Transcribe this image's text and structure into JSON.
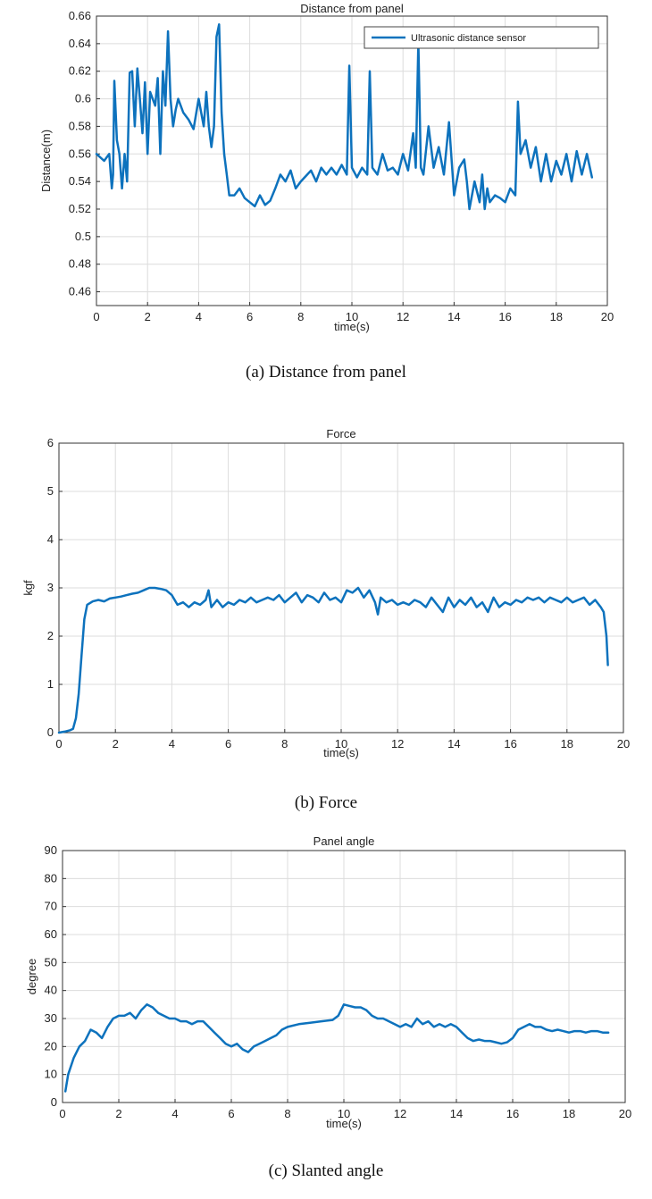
{
  "chart_data": [
    {
      "type": "line",
      "title": "Distance from panel",
      "xlabel": "time(s)",
      "ylabel": "Distance(m)",
      "xlim": [
        0,
        20
      ],
      "ylim": [
        0.45,
        0.66
      ],
      "xticks": [
        0,
        2,
        4,
        6,
        8,
        10,
        12,
        14,
        16,
        18,
        20
      ],
      "yticks": [
        0.46,
        0.48,
        0.5,
        0.52,
        0.54,
        0.56,
        0.58,
        0.6,
        0.62,
        0.64,
        0.66
      ],
      "grid": true,
      "legend": "top-right",
      "color": "#0d72bd",
      "series": [
        {
          "name": "Ultrasonic distance sensor",
          "x": [
            0,
            0.3,
            0.5,
            0.6,
            0.65,
            0.7,
            0.8,
            0.9,
            1.0,
            1.1,
            1.2,
            1.3,
            1.4,
            1.5,
            1.6,
            1.7,
            1.8,
            1.9,
            2.0,
            2.1,
            2.2,
            2.3,
            2.4,
            2.5,
            2.6,
            2.7,
            2.8,
            2.9,
            3.0,
            3.1,
            3.2,
            3.4,
            3.6,
            3.8,
            4.0,
            4.2,
            4.3,
            4.4,
            4.5,
            4.6,
            4.7,
            4.8,
            4.9,
            5.0,
            5.1,
            5.2,
            5.4,
            5.6,
            5.8,
            6.0,
            6.2,
            6.4,
            6.6,
            6.8,
            7.0,
            7.2,
            7.4,
            7.6,
            7.8,
            8.0,
            8.2,
            8.4,
            8.6,
            8.8,
            9.0,
            9.2,
            9.4,
            9.6,
            9.8,
            9.9,
            10.0,
            10.2,
            10.4,
            10.6,
            10.7,
            10.8,
            11.0,
            11.2,
            11.4,
            11.6,
            11.8,
            12.0,
            12.2,
            12.4,
            12.5,
            12.6,
            12.7,
            12.8,
            13.0,
            13.2,
            13.4,
            13.6,
            13.8,
            14.0,
            14.2,
            14.4,
            14.5,
            14.6,
            14.8,
            15.0,
            15.1,
            15.2,
            15.3,
            15.4,
            15.6,
            15.8,
            16.0,
            16.2,
            16.4,
            16.5,
            16.6,
            16.8,
            17.0,
            17.2,
            17.4,
            17.6,
            17.8,
            18.0,
            18.2,
            18.4,
            18.6,
            18.8,
            19.0,
            19.2,
            19.4
          ],
          "y": [
            0.56,
            0.555,
            0.56,
            0.535,
            0.545,
            0.613,
            0.57,
            0.56,
            0.535,
            0.56,
            0.54,
            0.619,
            0.62,
            0.58,
            0.622,
            0.6,
            0.575,
            0.612,
            0.56,
            0.605,
            0.6,
            0.595,
            0.615,
            0.56,
            0.62,
            0.595,
            0.649,
            0.6,
            0.58,
            0.592,
            0.6,
            0.59,
            0.585,
            0.578,
            0.6,
            0.58,
            0.605,
            0.58,
            0.565,
            0.58,
            0.645,
            0.654,
            0.59,
            0.56,
            0.545,
            0.53,
            0.53,
            0.535,
            0.528,
            0.525,
            0.522,
            0.53,
            0.523,
            0.526,
            0.535,
            0.545,
            0.54,
            0.548,
            0.535,
            0.54,
            0.544,
            0.548,
            0.54,
            0.55,
            0.545,
            0.55,
            0.545,
            0.552,
            0.545,
            0.624,
            0.55,
            0.543,
            0.55,
            0.545,
            0.62,
            0.55,
            0.545,
            0.56,
            0.548,
            0.55,
            0.545,
            0.56,
            0.548,
            0.575,
            0.55,
            0.641,
            0.55,
            0.545,
            0.58,
            0.55,
            0.565,
            0.545,
            0.583,
            0.53,
            0.55,
            0.556,
            0.54,
            0.52,
            0.54,
            0.525,
            0.545,
            0.52,
            0.535,
            0.525,
            0.53,
            0.528,
            0.525,
            0.535,
            0.53,
            0.598,
            0.56,
            0.57,
            0.55,
            0.565,
            0.54,
            0.56,
            0.54,
            0.555,
            0.545,
            0.56,
            0.54,
            0.562,
            0.545,
            0.56,
            0.543
          ]
        }
      ]
    },
    {
      "type": "line",
      "title": "Force",
      "xlabel": "time(s)",
      "ylabel": "kgf",
      "xlim": [
        0,
        20
      ],
      "ylim": [
        0,
        6
      ],
      "xticks": [
        0,
        2,
        4,
        6,
        8,
        10,
        12,
        14,
        16,
        18,
        20
      ],
      "yticks": [
        0,
        1,
        2,
        3,
        4,
        5,
        6
      ],
      "grid": true,
      "color": "#0d72bd",
      "series": [
        {
          "x": [
            0,
            0.2,
            0.4,
            0.5,
            0.6,
            0.7,
            0.8,
            0.9,
            1.0,
            1.2,
            1.4,
            1.6,
            1.8,
            2.0,
            2.2,
            2.4,
            2.6,
            2.8,
            3.0,
            3.2,
            3.4,
            3.6,
            3.8,
            4.0,
            4.2,
            4.4,
            4.6,
            4.8,
            5.0,
            5.2,
            5.3,
            5.4,
            5.6,
            5.8,
            6.0,
            6.2,
            6.4,
            6.6,
            6.8,
            7.0,
            7.2,
            7.4,
            7.6,
            7.8,
            8.0,
            8.2,
            8.4,
            8.6,
            8.8,
            9.0,
            9.2,
            9.4,
            9.6,
            9.8,
            10.0,
            10.2,
            10.4,
            10.6,
            10.8,
            11.0,
            11.2,
            11.3,
            11.4,
            11.6,
            11.8,
            12.0,
            12.2,
            12.4,
            12.6,
            12.8,
            13.0,
            13.2,
            13.4,
            13.6,
            13.8,
            14.0,
            14.2,
            14.4,
            14.6,
            14.8,
            15.0,
            15.2,
            15.4,
            15.6,
            15.8,
            16.0,
            16.2,
            16.4,
            16.6,
            16.8,
            17.0,
            17.2,
            17.4,
            17.6,
            17.8,
            18.0,
            18.2,
            18.4,
            18.6,
            18.8,
            19.0,
            19.2,
            19.3,
            19.4,
            19.45
          ],
          "y": [
            0,
            0.02,
            0.05,
            0.08,
            0.3,
            0.8,
            1.6,
            2.35,
            2.65,
            2.72,
            2.75,
            2.72,
            2.78,
            2.8,
            2.82,
            2.85,
            2.88,
            2.9,
            2.95,
            3.0,
            3.0,
            2.98,
            2.95,
            2.85,
            2.65,
            2.7,
            2.6,
            2.7,
            2.65,
            2.75,
            2.95,
            2.6,
            2.75,
            2.6,
            2.7,
            2.65,
            2.75,
            2.7,
            2.8,
            2.7,
            2.75,
            2.8,
            2.75,
            2.85,
            2.7,
            2.8,
            2.9,
            2.7,
            2.85,
            2.8,
            2.7,
            2.9,
            2.75,
            2.8,
            2.7,
            2.95,
            2.9,
            3.0,
            2.8,
            2.95,
            2.7,
            2.45,
            2.8,
            2.7,
            2.75,
            2.65,
            2.7,
            2.65,
            2.75,
            2.7,
            2.6,
            2.8,
            2.65,
            2.5,
            2.8,
            2.6,
            2.75,
            2.65,
            2.8,
            2.6,
            2.7,
            2.5,
            2.8,
            2.6,
            2.7,
            2.65,
            2.75,
            2.7,
            2.8,
            2.75,
            2.8,
            2.7,
            2.8,
            2.75,
            2.7,
            2.8,
            2.7,
            2.75,
            2.8,
            2.65,
            2.75,
            2.6,
            2.5,
            2.0,
            1.4
          ]
        }
      ]
    },
    {
      "type": "line",
      "title": "Panel angle",
      "xlabel": "time(s)",
      "ylabel": "degree",
      "xlim": [
        0,
        20
      ],
      "ylim": [
        0,
        90
      ],
      "xticks": [
        0,
        2,
        4,
        6,
        8,
        10,
        12,
        14,
        16,
        18,
        20
      ],
      "yticks": [
        0,
        10,
        20,
        30,
        40,
        50,
        60,
        70,
        80,
        90
      ],
      "grid": true,
      "color": "#0d72bd",
      "series": [
        {
          "x": [
            0.1,
            0.2,
            0.4,
            0.6,
            0.8,
            1.0,
            1.2,
            1.4,
            1.6,
            1.8,
            2.0,
            2.2,
            2.4,
            2.6,
            2.8,
            3.0,
            3.2,
            3.4,
            3.6,
            3.8,
            4.0,
            4.2,
            4.4,
            4.6,
            4.8,
            5.0,
            5.2,
            5.4,
            5.6,
            5.8,
            6.0,
            6.2,
            6.4,
            6.6,
            6.8,
            7.0,
            7.2,
            7.4,
            7.6,
            7.8,
            8.0,
            8.4,
            8.8,
            9.2,
            9.6,
            9.8,
            10.0,
            10.2,
            10.4,
            10.6,
            10.8,
            11.0,
            11.2,
            11.4,
            11.6,
            11.8,
            12.0,
            12.2,
            12.4,
            12.6,
            12.8,
            13.0,
            13.2,
            13.4,
            13.6,
            13.8,
            14.0,
            14.2,
            14.4,
            14.6,
            14.8,
            15.0,
            15.2,
            15.4,
            15.6,
            15.8,
            16.0,
            16.2,
            16.4,
            16.6,
            16.8,
            17.0,
            17.2,
            17.4,
            17.6,
            17.8,
            18.0,
            18.2,
            18.4,
            18.6,
            18.8,
            19.0,
            19.2,
            19.4
          ],
          "y": [
            4,
            10,
            16,
            20,
            22,
            26,
            25,
            23,
            27,
            30,
            31,
            31,
            32,
            30,
            33,
            35,
            34,
            32,
            31,
            30,
            30,
            29,
            29,
            28,
            29,
            29,
            27,
            25,
            23,
            21,
            20,
            21,
            19,
            18,
            20,
            21,
            22,
            23,
            24,
            26,
            27,
            28,
            28.5,
            29,
            29.5,
            31,
            35,
            34.5,
            34,
            34,
            33,
            31,
            30,
            30,
            29,
            28,
            27,
            28,
            27,
            30,
            28,
            29,
            27,
            28,
            27,
            28,
            27,
            25,
            23,
            22,
            22.5,
            22,
            22,
            21.5,
            21,
            21.5,
            23,
            26,
            27,
            28,
            27,
            27,
            26,
            25.5,
            26,
            25.5,
            25,
            25.5,
            25.5,
            25,
            25.5,
            25.5,
            25,
            25
          ]
        }
      ]
    }
  ],
  "captions": [
    "(a)  Distance  from  panel",
    "(b)  Force",
    "(c)  Slanted  angle"
  ]
}
